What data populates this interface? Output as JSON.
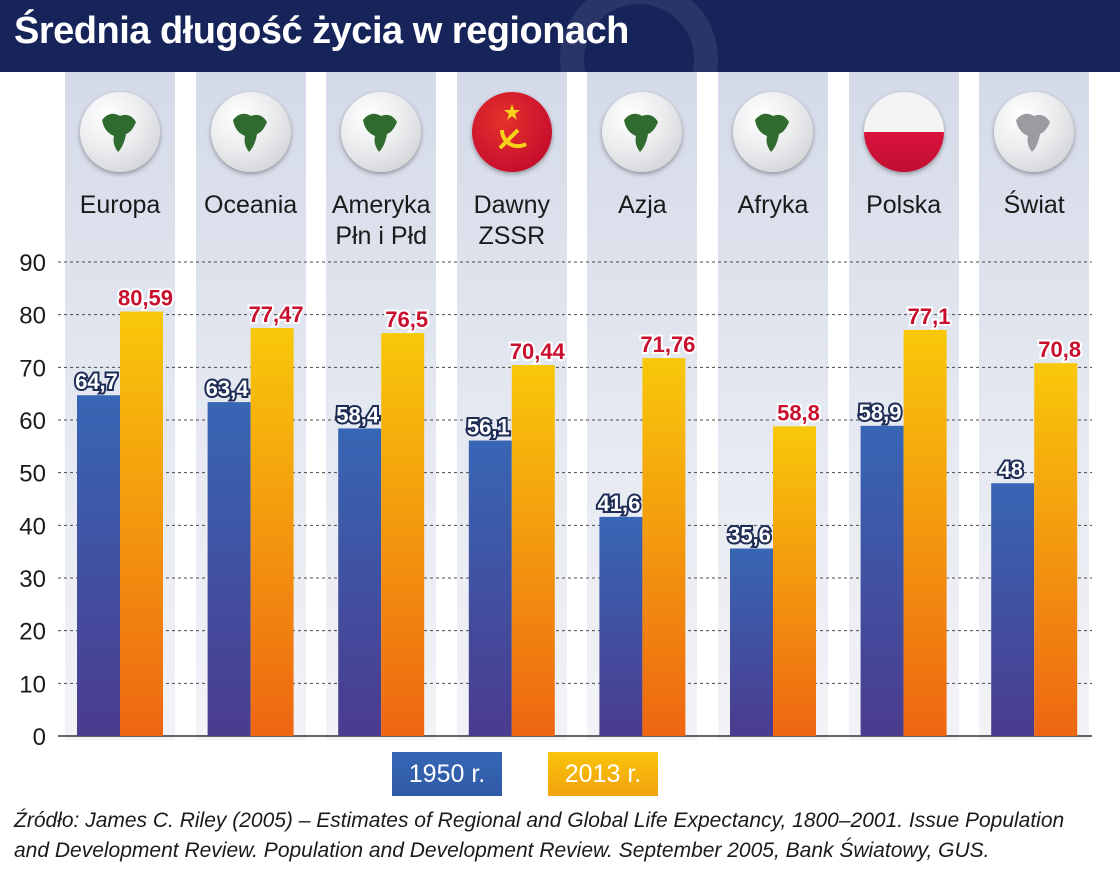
{
  "title": "Średnia długość życia w regionach",
  "chart_data": {
    "type": "bar",
    "title": "Średnia długość życia w regionach",
    "categories": [
      "Europa",
      "Oceania",
      "Ameryka Płn i Płd",
      "Dawny ZSSR",
      "Azja",
      "Afryka",
      "Polska",
      "Świat"
    ],
    "category_lines": [
      [
        "Europa"
      ],
      [
        "Oceania"
      ],
      [
        "Ameryka",
        "Płn i Płd"
      ],
      [
        "Dawny",
        "ZSSR"
      ],
      [
        "Azja"
      ],
      [
        "Afryka"
      ],
      [
        "Polska"
      ],
      [
        "Świat"
      ]
    ],
    "category_icons": [
      "europe-globe-icon",
      "oceania-globe-icon",
      "americas-globe-icon",
      "ussr-flag-icon",
      "asia-globe-icon",
      "africa-globe-icon",
      "poland-flag-icon",
      "world-globe-icon"
    ],
    "series": [
      {
        "name": "1950 r.",
        "values": [
          64.7,
          63.4,
          58.4,
          56.1,
          41.6,
          35.6,
          58.9,
          48
        ],
        "labels": [
          "64,7",
          "63,4",
          "58,4",
          "56,1",
          "41,6",
          "35,6",
          "58,9",
          "48"
        ],
        "color_top": "#3a63b0",
        "color_bottom": "#4a3a8c",
        "label_color": "#ffffff"
      },
      {
        "name": "2013 r.",
        "values": [
          80.59,
          77.47,
          76.5,
          70.44,
          71.76,
          58.8,
          77.1,
          70.8
        ],
        "labels": [
          "80,59",
          "77,47",
          "76,5",
          "70,44",
          "71,76",
          "58,8",
          "77,1",
          "70,8"
        ],
        "color_top": "#f7c40a",
        "color_bottom": "#ef6c12",
        "label_color": "#c8102e"
      }
    ],
    "ylim": [
      0,
      90
    ],
    "yticks": [
      0,
      10,
      20,
      30,
      40,
      50,
      60,
      70,
      80,
      90
    ],
    "grid": true,
    "legend": "bottom-center"
  },
  "legend": {
    "series_1950": "1950 r.",
    "series_2013": "2013 r."
  },
  "colors": {
    "header": "#16245a",
    "blue": "#3a63b0",
    "orange": "#f5a00c"
  },
  "source": "Źródło: James C. Riley (2005) – Estimates of Regional and Global Life Expectancy, 1800–2001. Issue Population and Development Review. Population and Development Review. September 2005, Bank Światowy, GUS."
}
